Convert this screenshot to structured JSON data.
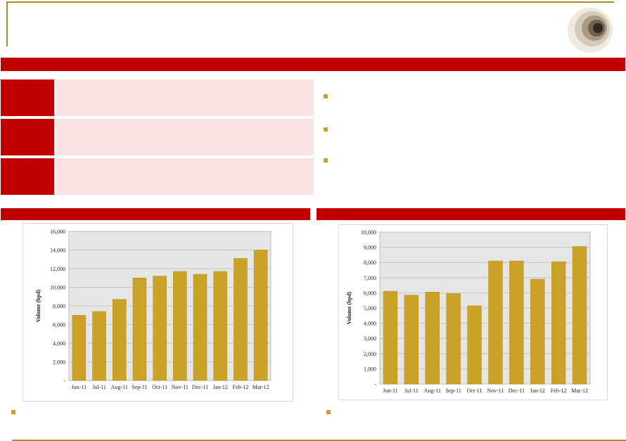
{
  "colors": {
    "accent_red": "#c00000",
    "gold": "#c9a227",
    "panel_pink": "#f9e3e3",
    "plot_bg": "#e6e6e6"
  },
  "logo": {
    "icon": "concentric-circles-logo"
  },
  "key_points": [
    {
      "label": "",
      "text": ""
    },
    {
      "label": "",
      "text": ""
    },
    {
      "label": "",
      "text": ""
    }
  ],
  "bullets": [
    {
      "icon": "square-bullet-icon",
      "text": ""
    },
    {
      "icon": "square-bullet-icon",
      "text": ""
    },
    {
      "icon": "square-bullet-icon",
      "text": ""
    }
  ],
  "footnotes": [
    {
      "icon": "square-bullet-icon",
      "text": ""
    },
    {
      "icon": "square-bullet-icon",
      "text": ""
    }
  ],
  "chart_data": [
    {
      "type": "bar",
      "ylabel": "Volume (bpd)",
      "categories": [
        "Jun-11",
        "Jul-11",
        "Aug-11",
        "Sep-11",
        "Oct-11",
        "Nov-11",
        "Dec-11",
        "Jan-12",
        "Feb-12",
        "Mar-12"
      ],
      "values": [
        7000,
        7400,
        8700,
        11000,
        11200,
        11700,
        11400,
        11700,
        13100,
        14000
      ],
      "ylim": [
        0,
        16000
      ],
      "yticks": [
        0,
        2000,
        4000,
        6000,
        8000,
        10000,
        12000,
        14000,
        16000
      ],
      "ytick_labels": [
        "-",
        "2,000",
        "4,000",
        "6,000",
        "8,000",
        "10,000",
        "12,000",
        "14,000",
        "16,000"
      ],
      "grid": true
    },
    {
      "type": "bar",
      "ylabel": "Volume (bpd)",
      "categories": [
        "Jun-11",
        "Jul-11",
        "Aug-11",
        "Sep-11",
        "Oct-11",
        "Nov-11",
        "Dec-11",
        "Jan-12",
        "Feb-12",
        "Mar-12"
      ],
      "values": [
        6100,
        5850,
        6050,
        5950,
        5150,
        8100,
        8100,
        6900,
        8050,
        9050
      ],
      "ylim": [
        0,
        10000
      ],
      "yticks": [
        0,
        1000,
        2000,
        3000,
        4000,
        5000,
        6000,
        7000,
        8000,
        9000,
        10000
      ],
      "ytick_labels": [
        "-",
        "1,000",
        "2,000",
        "3,000",
        "4,000",
        "5,000",
        "6,000",
        "7,000",
        "8,000",
        "9,000",
        "10,000"
      ],
      "grid": true
    }
  ]
}
